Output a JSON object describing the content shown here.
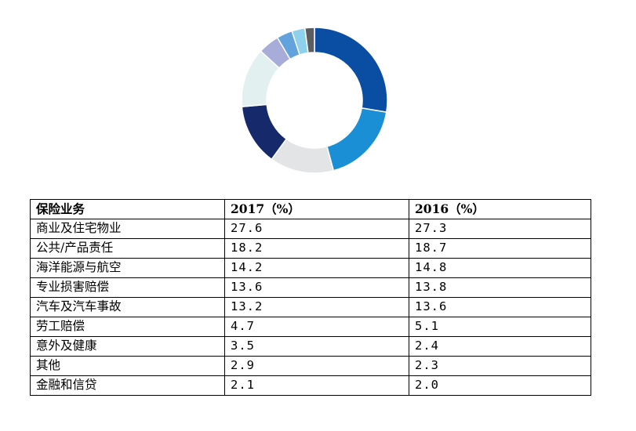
{
  "chart_data": {
    "type": "pie",
    "categories": [
      "商业及住宅物业",
      "公共/产品责任",
      "海洋能源与航空",
      "专业损害赔偿",
      "汽车及汽车事故",
      "劳工赔偿",
      "意外及健康",
      "其他",
      "金融和信贷"
    ],
    "series": [
      {
        "name": "2017（%）",
        "values": [
          27.6,
          18.2,
          14.2,
          13.6,
          13.2,
          4.7,
          3.5,
          2.9,
          2.1
        ]
      },
      {
        "name": "2016（%）",
        "values": [
          27.3,
          18.7,
          14.8,
          13.8,
          13.6,
          5.1,
          2.4,
          2.3,
          2.0
        ]
      }
    ],
    "colors": [
      "#0a4ea3",
      "#1b8fd6",
      "#e2e4e5",
      "#162a6b",
      "#e2f0ef",
      "#a7acd9",
      "#62a3dd",
      "#8dd1ec",
      "#5b5d61"
    ]
  },
  "table": {
    "headers": [
      "保险业务",
      "2017（%）",
      "2016（%）"
    ]
  }
}
